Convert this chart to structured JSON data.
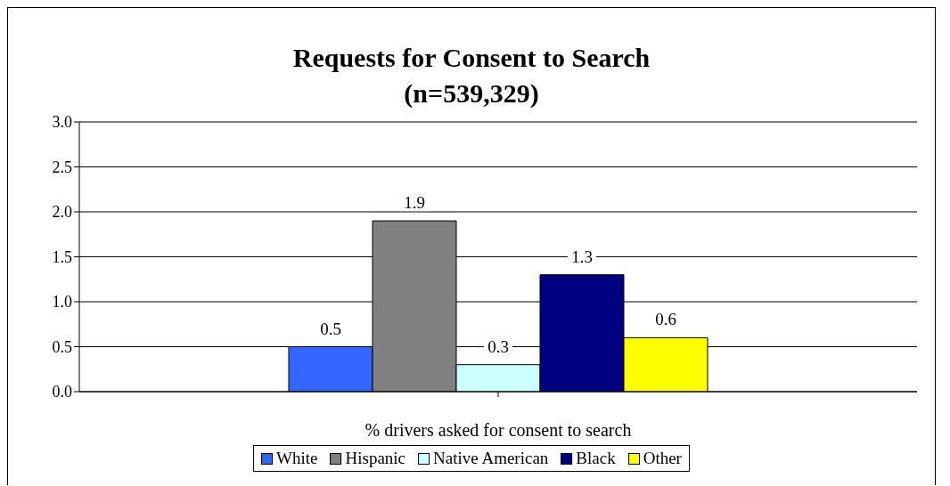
{
  "chart_data": {
    "type": "bar",
    "title": "Requests for Consent to Search",
    "subtitle": "(n=539,329)",
    "xlabel": "% drivers asked for consent to search",
    "categories": [
      null
    ],
    "series": [
      {
        "name": "White",
        "color": "#3366ff",
        "values": [
          0.5
        ]
      },
      {
        "name": "Hispanic",
        "color": "#808080",
        "values": [
          1.9
        ]
      },
      {
        "name": "Native American",
        "color": "#ccffff",
        "values": [
          0.3
        ]
      },
      {
        "name": "Black",
        "color": "#000080",
        "values": [
          1.3
        ]
      },
      {
        "name": "Other",
        "color": "#ffff00",
        "values": [
          0.6
        ]
      }
    ],
    "ylim": [
      0,
      3
    ],
    "yticks": [
      {
        "value": 0,
        "label": "0.0"
      },
      {
        "value": 0.5,
        "label": "0.5"
      },
      {
        "value": 1,
        "label": "1.0"
      },
      {
        "value": 1.5,
        "label": "1.5"
      },
      {
        "value": 2,
        "label": "2.0"
      },
      {
        "value": 2.5,
        "label": "2.5"
      },
      {
        "value": 3,
        "label": "3.0"
      }
    ],
    "grid": "y",
    "legend": "bottom",
    "data_labels": true
  }
}
